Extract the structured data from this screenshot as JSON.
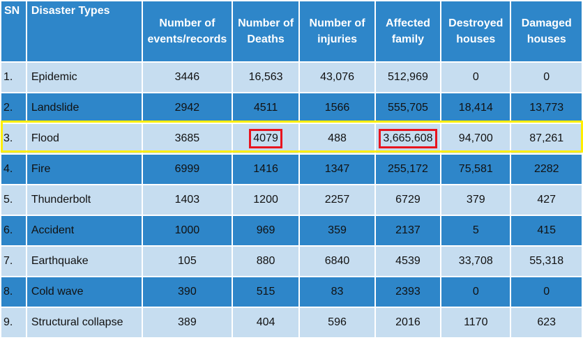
{
  "headers": [
    "SN",
    "Disaster Types",
    "Number of events/records",
    "Number of Deaths",
    "Number of injuries",
    "Affected family",
    "Destroyed houses",
    "Damaged houses"
  ],
  "rows": [
    [
      "1.",
      "Epidemic",
      "3446",
      "16,563",
      "43,076",
      "512,969",
      "0",
      "0"
    ],
    [
      "2.",
      "Landslide",
      "2942",
      "4511",
      "1566",
      "555,705",
      "18,414",
      "13,773"
    ],
    [
      "3.",
      "Flood",
      "3685",
      "4079",
      "488",
      "3,665,608",
      "94,700",
      "87,261"
    ],
    [
      "4.",
      "Fire",
      "6999",
      "1416",
      "1347",
      "255,172",
      "75,581",
      "2282"
    ],
    [
      "5.",
      "Thunderbolt",
      "1403",
      "1200",
      "2257",
      "6729",
      "379",
      "427"
    ],
    [
      "6.",
      "Accident",
      "1000",
      "969",
      "359",
      "2137",
      "5",
      "415"
    ],
    [
      "7.",
      "Earthquake",
      "105",
      "880",
      "6840",
      "4539",
      "33,708",
      "55,318"
    ],
    [
      "8.",
      "Cold wave",
      "390",
      "515",
      "83",
      "2393",
      "0",
      "0"
    ],
    [
      "9.",
      "Structural collapse",
      "389",
      "404",
      "596",
      "2016",
      "1170",
      "623"
    ]
  ],
  "highlight": {
    "row_color": "#ffee00",
    "cell_color": "#e8141e"
  },
  "colors": {
    "header": "#2e86c9",
    "light_row": "#c6ddf0",
    "dark_row": "#2e86c9"
  }
}
